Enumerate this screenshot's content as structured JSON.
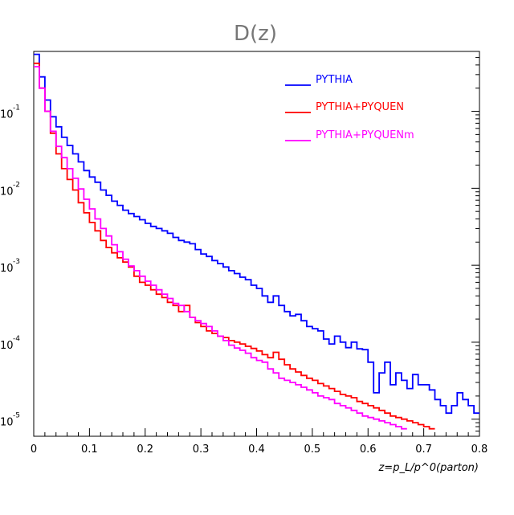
{
  "chart_data": {
    "type": "line",
    "title": "D(z)",
    "xlabel": "z=p_L/p^0(parton)",
    "ylabel": "",
    "xlim": [
      0,
      0.8
    ],
    "ylim": [
      6e-06,
      0.6
    ],
    "yscale": "log",
    "x_ticks": [
      "0",
      "0.1",
      "0.2",
      "0.3",
      "0.4",
      "0.5",
      "0.6",
      "0.7",
      "0.8"
    ],
    "y_ticks": [
      {
        "base": "10",
        "exp": "-1",
        "value": 0.1
      },
      {
        "base": "10",
        "exp": "-2",
        "value": 0.01
      },
      {
        "base": "10",
        "exp": "-3",
        "value": 0.001
      },
      {
        "base": "10",
        "exp": "-4",
        "value": 0.0001
      },
      {
        "base": "10",
        "exp": "-5",
        "value": 1e-05
      }
    ],
    "legend_position": "top-right",
    "bin_width": 0.01,
    "series": [
      {
        "name": "PYTHIA",
        "color": "#0000ff",
        "x_start": 0,
        "values": [
          0.55,
          0.28,
          0.14,
          0.085,
          0.063,
          0.046,
          0.036,
          0.028,
          0.022,
          0.017,
          0.014,
          0.012,
          0.0095,
          0.0081,
          0.0068,
          0.006,
          0.0052,
          0.0047,
          0.0043,
          0.0039,
          0.0035,
          0.0032,
          0.003,
          0.0028,
          0.0026,
          0.0023,
          0.0021,
          0.002,
          0.0019,
          0.0016,
          0.0014,
          0.0013,
          0.00115,
          0.00105,
          0.00095,
          0.00085,
          0.00078,
          0.0007,
          0.00065,
          0.00055,
          0.0005,
          0.0004,
          0.00033,
          0.0004,
          0.0003,
          0.00025,
          0.00022,
          0.00023,
          0.00019,
          0.00016,
          0.00015,
          0.00014,
          0.00011,
          9.5e-05,
          0.00012,
          0.0001,
          8.5e-05,
          0.0001,
          8.2e-05,
          8e-05,
          5.5e-05,
          2.2e-05,
          4e-05,
          5.5e-05,
          2.8e-05,
          4e-05,
          3.2e-05,
          2.5e-05,
          3.8e-05,
          2.8e-05,
          2.8e-05,
          2.4e-05,
          1.8e-05,
          1.5e-05,
          1.2e-05,
          1.5e-05,
          2.2e-05,
          1.8e-05,
          1.5e-05,
          1.2e-05
        ]
      },
      {
        "name": "PYTHIA+PYQUEN",
        "color": "#ff0000",
        "x_start": 0,
        "values": [
          0.42,
          0.2,
          0.1,
          0.052,
          0.028,
          0.018,
          0.013,
          0.0095,
          0.0065,
          0.0048,
          0.0036,
          0.0028,
          0.0021,
          0.0017,
          0.00145,
          0.00125,
          0.0011,
          0.00095,
          0.00072,
          0.0006,
          0.00055,
          0.00048,
          0.00042,
          0.00038,
          0.00033,
          0.0003,
          0.00025,
          0.0003,
          0.00021,
          0.00018,
          0.00016,
          0.00014,
          0.00013,
          0.00012,
          0.000115,
          0.000105,
          0.0001,
          9.5e-05,
          8.85e-05,
          8.3e-05,
          7.7e-05,
          6.9e-05,
          6.3e-05,
          7.4e-05,
          6e-05,
          5.1e-05,
          4.5e-05,
          4.1e-05,
          3.7e-05,
          3.4e-05,
          3.2e-05,
          2.9e-05,
          2.7e-05,
          2.5e-05,
          2.3e-05,
          2.1e-05,
          2e-05,
          1.9e-05,
          1.7e-05,
          1.6e-05,
          1.5e-05,
          1.4e-05,
          1.3e-05,
          1.2e-05,
          1.1e-05,
          1.05e-05,
          1e-05,
          9.5e-06,
          9e-06,
          8.5e-06,
          8e-06,
          7.5e-06
        ]
      },
      {
        "name": "PYTHIA+PYQUENm",
        "color": "#ff00ff",
        "x_start": 0,
        "values": [
          0.38,
          0.2,
          0.1,
          0.055,
          0.035,
          0.025,
          0.018,
          0.0135,
          0.0098,
          0.0072,
          0.0054,
          0.004,
          0.003,
          0.0024,
          0.00185,
          0.0015,
          0.0012,
          0.00098,
          0.00085,
          0.00072,
          0.00062,
          0.00055,
          0.00048,
          0.00042,
          0.00037,
          0.00032,
          0.0003,
          0.00025,
          0.00021,
          0.00019,
          0.000175,
          0.00016,
          0.00014,
          0.00012,
          0.000105,
          9.15e-05,
          8.4e-05,
          7.85e-05,
          7.2e-05,
          6.3e-05,
          5.8e-05,
          5.5e-05,
          4.5e-05,
          4e-05,
          3.4e-05,
          3.2e-05,
          3e-05,
          2.8e-05,
          2.6e-05,
          2.4e-05,
          2.2e-05,
          2e-05,
          1.9e-05,
          1.8e-05,
          1.6e-05,
          1.5e-05,
          1.4e-05,
          1.3e-05,
          1.2e-05,
          1.1e-05,
          1.05e-05,
          1e-05,
          9.5e-06,
          9e-06,
          8.5e-06,
          8e-06,
          7.5e-06
        ]
      }
    ]
  }
}
